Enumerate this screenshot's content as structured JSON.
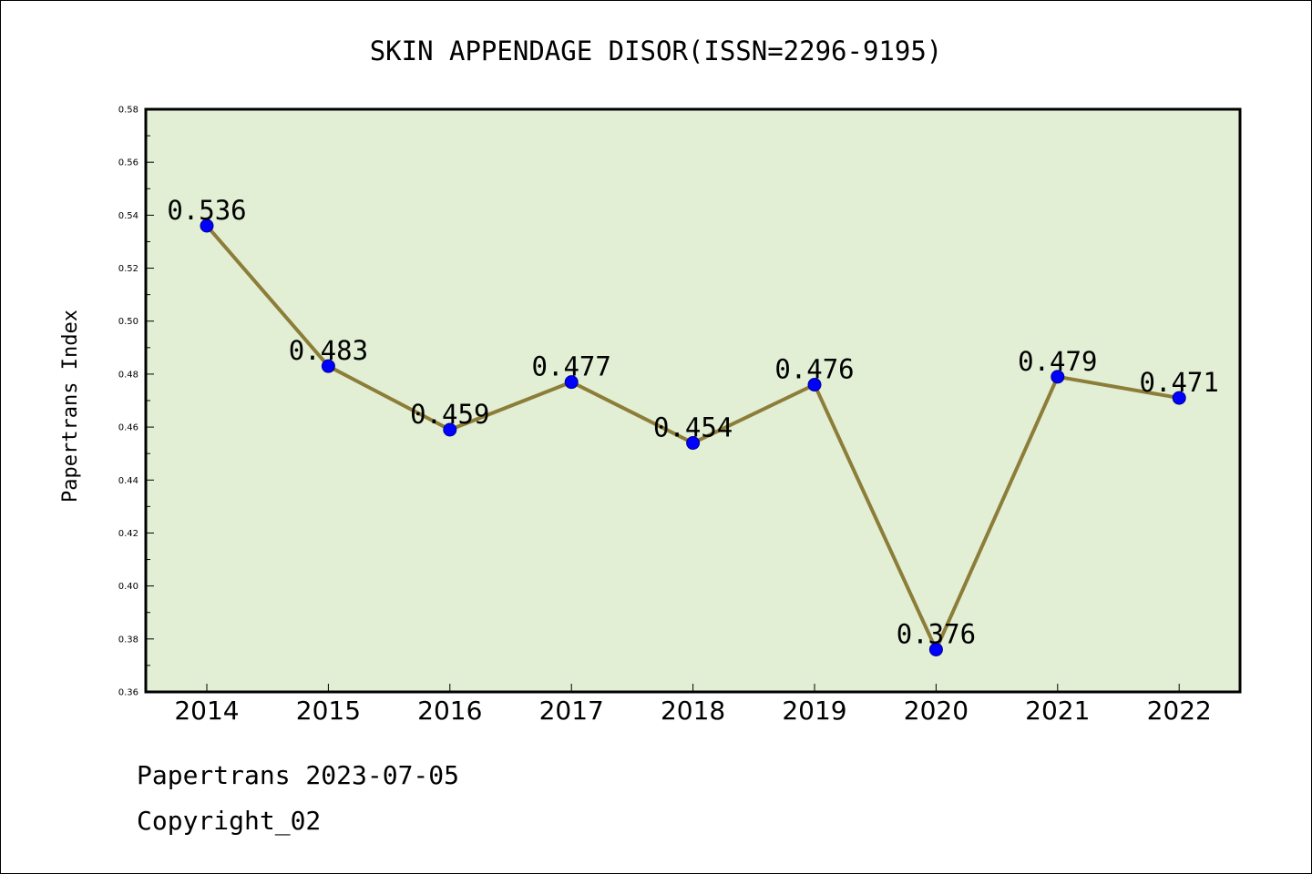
{
  "footer": {
    "line1": "Papertrans 2023-07-05",
    "line2": "Copyright_02"
  },
  "chart_data": {
    "type": "line",
    "title": "SKIN APPENDAGE DISOR(ISSN=2296-9195)",
    "xlabel": "",
    "ylabel": "Papertrans Index",
    "categories": [
      "2014",
      "2015",
      "2016",
      "2017",
      "2018",
      "2019",
      "2020",
      "2021",
      "2022"
    ],
    "series": [
      {
        "values": [
          0.536,
          0.483,
          0.459,
          0.477,
          0.454,
          0.476,
          0.376,
          0.479,
          0.471
        ],
        "labels": [
          "0.536",
          "0.483",
          "0.459",
          "0.477",
          "0.454",
          "0.476",
          "0.376",
          "0.479",
          "0.471"
        ]
      }
    ],
    "ylim": [
      0.36,
      0.58
    ],
    "yticks": [
      0.36,
      0.38,
      0.4,
      0.42,
      0.44,
      0.46,
      0.48,
      0.5,
      0.52,
      0.54,
      0.56,
      0.58
    ],
    "ytick_labels": [
      "0.36",
      "0.38",
      "0.40",
      "0.42",
      "0.44",
      "0.46",
      "0.48",
      "0.50",
      "0.52",
      "0.54",
      "0.56",
      "0.58"
    ],
    "grid": false,
    "colors": {
      "plot_background": "#e2efd5",
      "line": "#8c7d38",
      "marker_fill": "#0000ff",
      "marker_edge": "#00008b"
    }
  }
}
